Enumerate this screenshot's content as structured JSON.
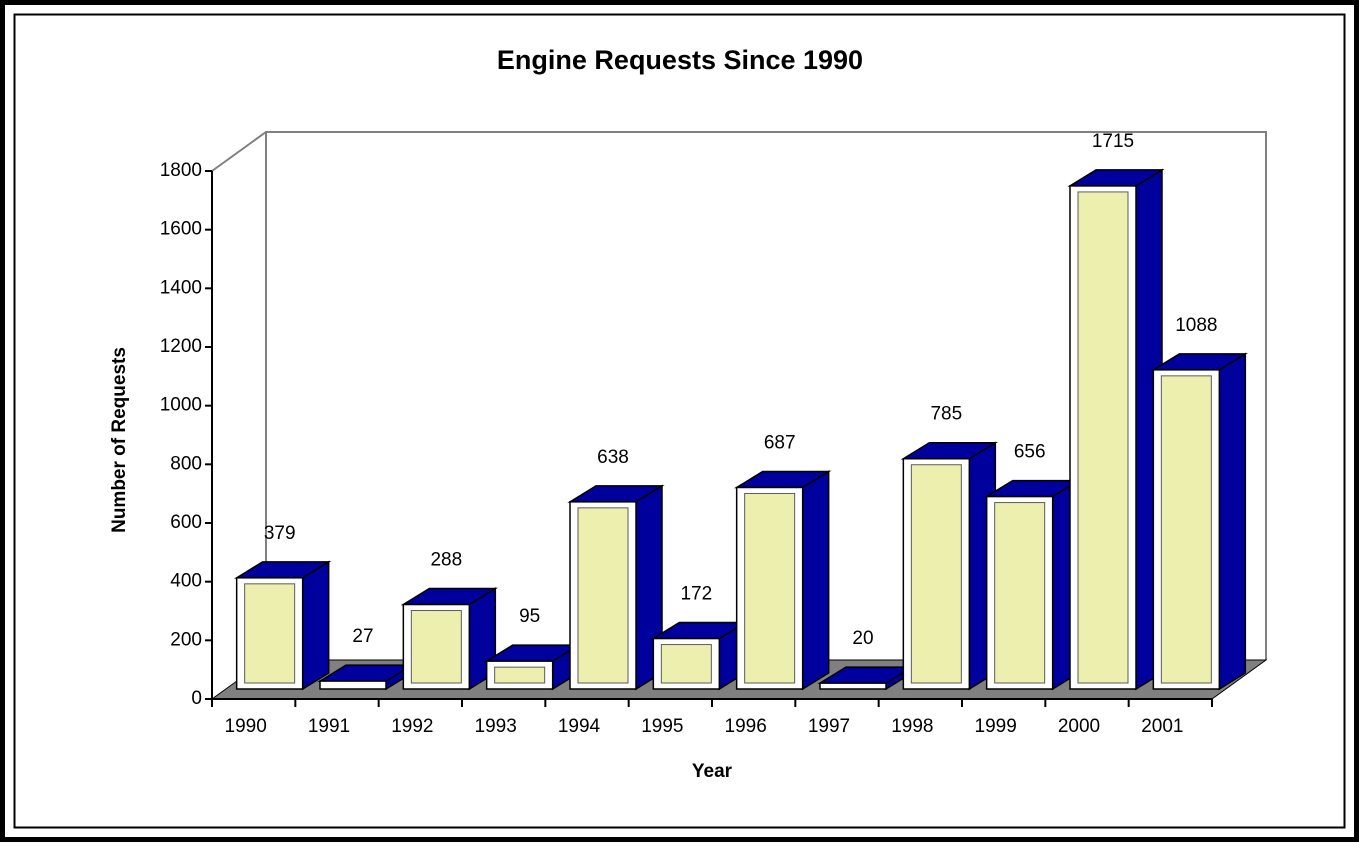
{
  "chart_data": {
    "type": "bar3d",
    "title": "Engine Requests Since 1990",
    "x_label": "Year",
    "y_label": "Number of Requests",
    "categories": [
      "1990",
      "1991",
      "1992",
      "1993",
      "1994",
      "1995",
      "1996",
      "1997",
      "1998",
      "1999",
      "2000",
      "2001"
    ],
    "values": [
      379,
      27,
      288,
      95,
      638,
      172,
      687,
      20,
      785,
      656,
      1715,
      1088
    ],
    "color": "#00009c",
    "ylim": [
      0,
      1800
    ],
    "yticks": [
      0,
      200,
      400,
      600,
      800,
      1000,
      1200,
      1400,
      1600,
      1800
    ]
  }
}
